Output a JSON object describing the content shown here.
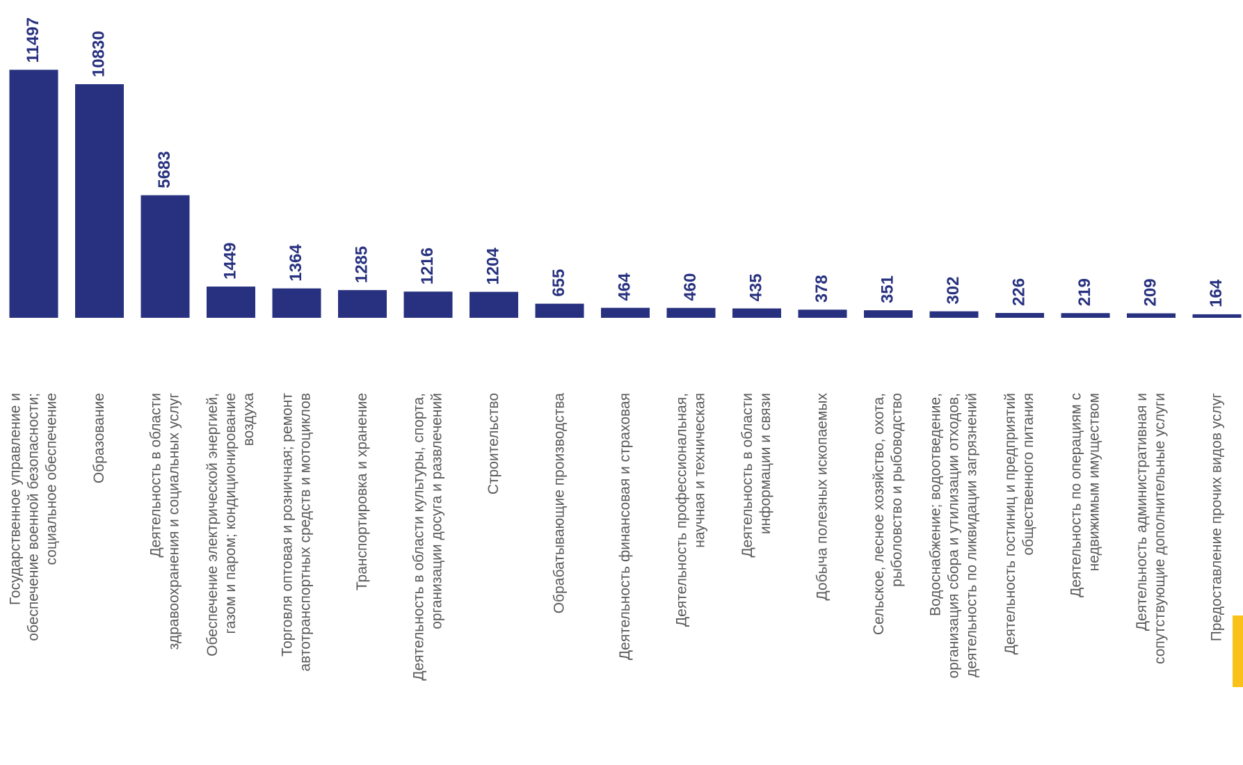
{
  "chart_data": {
    "type": "bar",
    "categories": [
      "Государственное управление и\nобеспечение военной безопасности;\nсоциальное обеспечение",
      "Образование",
      "Деятельность в области\nздравоохранения и социальных услуг",
      "Обеспечение электрической энергией,\nгазом и паром; кондиционирование\nвоздуха",
      "Торговля оптовая и розничная; ремонт\nавтотранспортных средств и мотоциклов",
      "Транспортировка и хранение",
      "Деятельность в области культуры, спорта,\nорганизации досуга и развлечений",
      "Строительство",
      "Обрабатывающие производства",
      "Деятельность финансовая и страховая",
      "Деятельность профессиональная,\nнаучная и техническая",
      "Деятельность в области\nинформации и связи",
      "Добыча полезных ископаемых",
      "Сельское, лесное хозяйство, охота,\nрыболовство и рыбоводство",
      "Водоснабжение; водоотведение,\nорганизация сбора и утилизации отходов,\nдеятельность по ликвидации загрязнений",
      "Деятельность гостиниц и предприятий\nобщественного питания",
      "Деятельность  по операциям с\nнедвижимым имуществом",
      "Деятельность административная и\nсопутствующие дополнительные услуги",
      "Предоставление прочих видов услуг"
    ],
    "values": [
      11497,
      10830,
      5683,
      1449,
      1364,
      1285,
      1216,
      1204,
      655,
      464,
      460,
      435,
      378,
      351,
      302,
      226,
      219,
      209,
      164
    ],
    "color": "#27317f",
    "ylim": [
      0,
      14700
    ]
  }
}
